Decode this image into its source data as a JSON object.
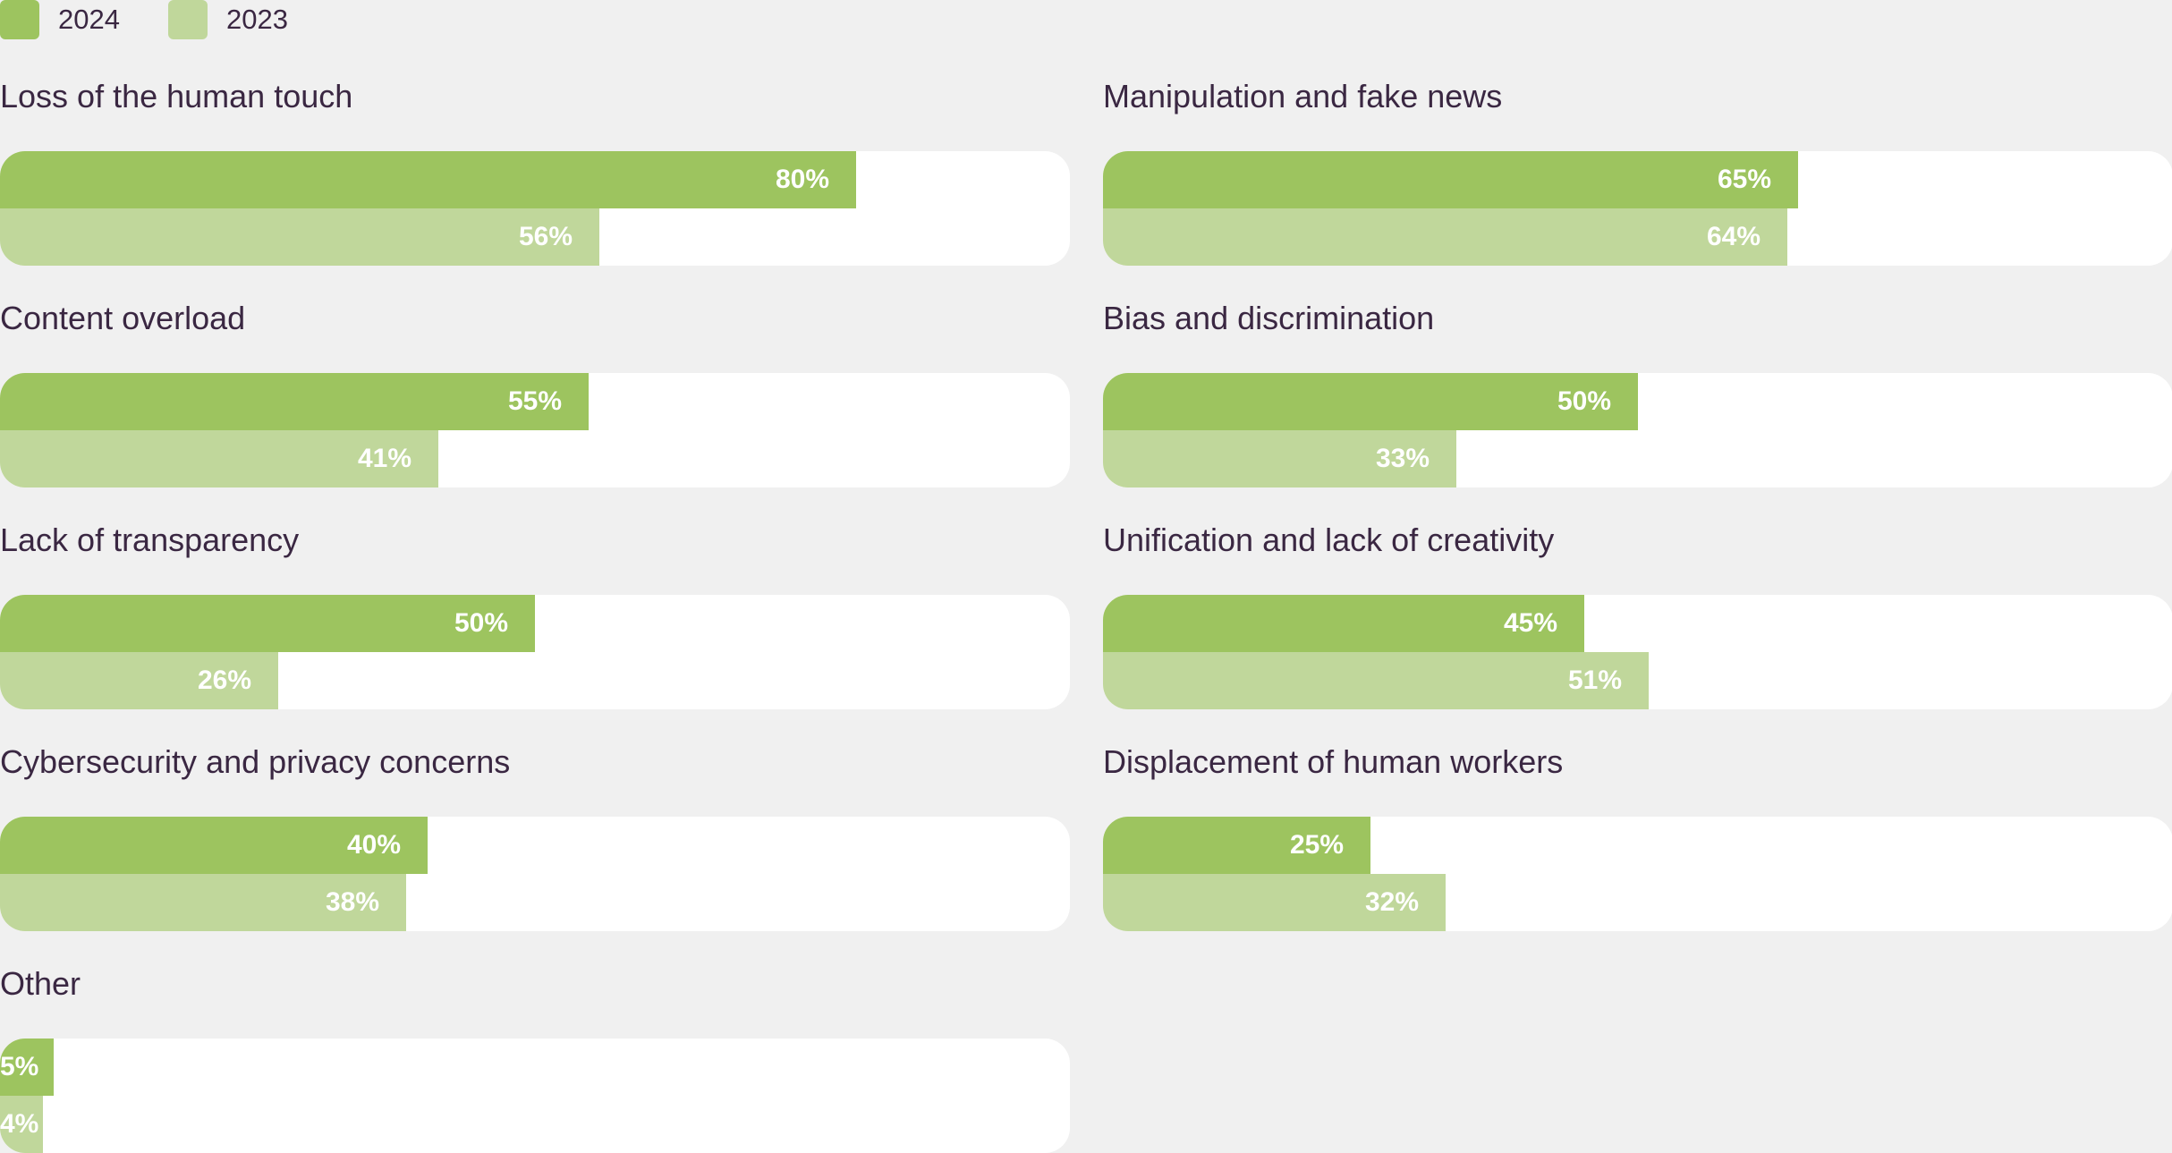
{
  "colors": {
    "series_2024": "#9dc45f",
    "series_2023": "#c0d79b",
    "track": "#ffffff",
    "text": "#3a2742"
  },
  "legend": [
    {
      "label": "2024",
      "color": "#9dc45f"
    },
    {
      "label": "2023",
      "color": "#c0d79b"
    }
  ],
  "chart_data": {
    "type": "bar",
    "orientation": "horizontal",
    "unit": "%",
    "xlim": [
      0,
      100
    ],
    "grid": false,
    "legend_position": "top-left",
    "series": [
      {
        "name": "2024",
        "color": "#9dc45f"
      },
      {
        "name": "2023",
        "color": "#c0d79b"
      }
    ],
    "categories": [
      {
        "title": "Loss of the human touch",
        "values": [
          80,
          56
        ],
        "labels": [
          "80%",
          "56%"
        ]
      },
      {
        "title": "Manipulation and fake news",
        "values": [
          65,
          64
        ],
        "labels": [
          "65%",
          "64%"
        ]
      },
      {
        "title": "Content overload",
        "values": [
          55,
          41
        ],
        "labels": [
          "55%",
          "41%"
        ]
      },
      {
        "title": "Bias and discrimination",
        "values": [
          50,
          33
        ],
        "labels": [
          "50%",
          "33%"
        ]
      },
      {
        "title": "Lack of transparency",
        "values": [
          50,
          26
        ],
        "labels": [
          "50%",
          "26%"
        ]
      },
      {
        "title": "Unification and lack of creativity",
        "values": [
          45,
          51
        ],
        "labels": [
          "45%",
          "51%"
        ]
      },
      {
        "title": "Cybersecurity and privacy concerns",
        "values": [
          40,
          38
        ],
        "labels": [
          "40%",
          "38%"
        ]
      },
      {
        "title": "Displacement of human workers",
        "values": [
          25,
          32
        ],
        "labels": [
          "25%",
          "32%"
        ]
      },
      {
        "title": "Other",
        "values": [
          5,
          4
        ],
        "labels": [
          "5%",
          "4%"
        ]
      }
    ]
  }
}
